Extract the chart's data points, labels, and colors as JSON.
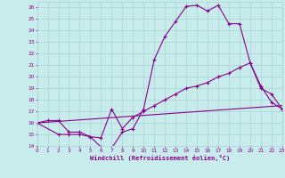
{
  "xlabel": "Windchill (Refroidissement éolien,°C)",
  "bg_color": "#c8ecec",
  "grid_color": "#a8d4d4",
  "line_color": "#880088",
  "xlim": [
    0,
    23
  ],
  "ylim": [
    14,
    26.5
  ],
  "yticks": [
    14,
    15,
    16,
    17,
    18,
    19,
    20,
    21,
    22,
    23,
    24,
    25,
    26
  ],
  "xticks": [
    0,
    1,
    2,
    3,
    4,
    5,
    6,
    7,
    8,
    9,
    10,
    11,
    12,
    13,
    14,
    15,
    16,
    17,
    18,
    19,
    20,
    21,
    22,
    23
  ],
  "curve1_x": [
    0,
    1,
    2,
    3,
    4,
    5,
    6,
    7,
    8,
    9,
    10,
    11,
    12,
    13,
    14,
    15,
    16,
    17,
    18,
    19,
    20,
    21,
    22,
    23
  ],
  "curve1_y": [
    16.0,
    16.2,
    16.2,
    15.2,
    15.2,
    14.8,
    13.9,
    13.8,
    15.2,
    15.5,
    17.2,
    21.5,
    23.5,
    24.8,
    26.1,
    26.2,
    25.7,
    26.2,
    24.6,
    24.6,
    21.2,
    19.2,
    17.8,
    17.2
  ],
  "curve2_x": [
    0,
    2,
    3,
    4,
    5,
    6,
    7,
    8,
    9,
    10,
    11,
    12,
    13,
    14,
    15,
    16,
    17,
    18,
    19,
    20,
    21,
    22,
    23
  ],
  "curve2_y": [
    16.0,
    15.0,
    15.0,
    15.0,
    14.8,
    14.7,
    17.2,
    15.5,
    16.5,
    17.0,
    17.5,
    18.0,
    18.5,
    19.0,
    19.2,
    19.5,
    20.0,
    20.3,
    20.8,
    21.2,
    19.0,
    18.5,
    17.2
  ],
  "line3_x": [
    0,
    23
  ],
  "line3_y": [
    16.0,
    17.5
  ]
}
